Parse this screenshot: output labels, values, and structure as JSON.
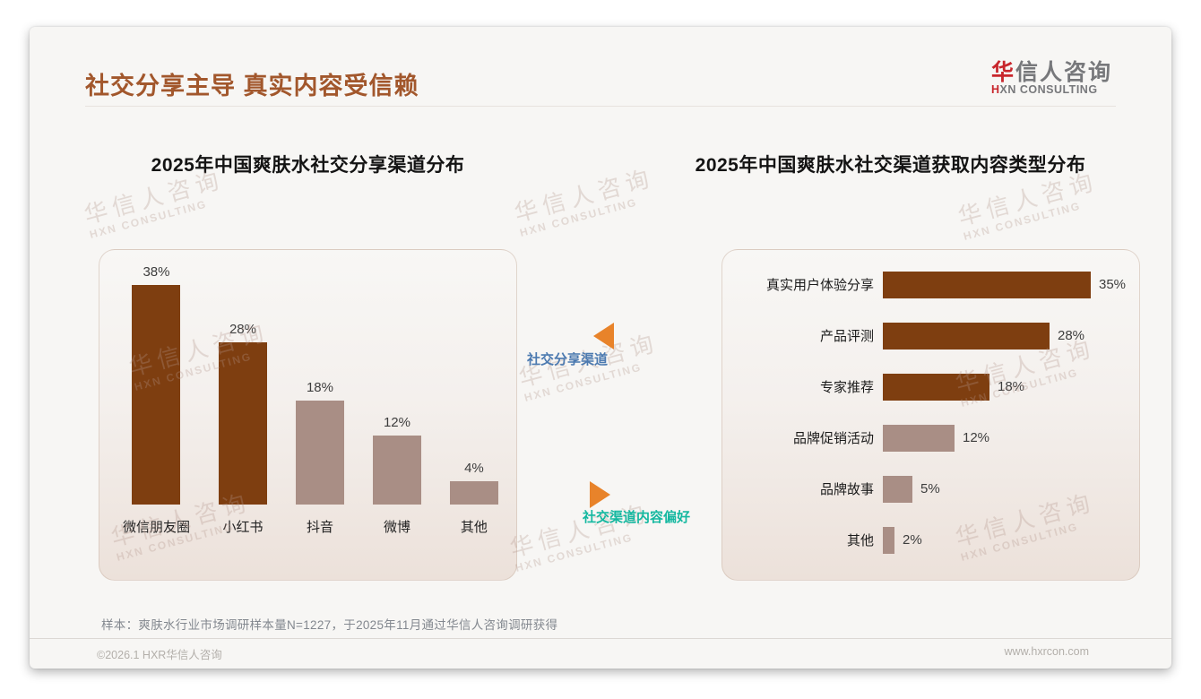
{
  "header": {
    "title": "社交分享主导 真实内容受信赖",
    "logo": {
      "cn_accent": "华",
      "cn_rest": "信人咨询",
      "en_accent": "H",
      "en_rest": "XN CONSULTING"
    }
  },
  "annotations": {
    "share_channel_label": "社交分享渠道",
    "content_pref_label": "社交渠道内容偏好"
  },
  "watermark": {
    "cn": "华信人咨询",
    "en": "HXN CONSULTING"
  },
  "footer": {
    "sample_note": "样本：爽肤水行业市场调研样本量N=1227，于2025年11月通过华信人咨询调研获得",
    "copyright": "©2026.1 HXR华信人咨询",
    "website": "www.hxrcon.com"
  },
  "colors": {
    "title_brown": "#A2572C",
    "bar_dark": "#7E3E10",
    "bar_muted": "#A98E85",
    "accent_orange": "#E8832A",
    "label_blue": "#4C7AB0",
    "label_teal": "#14B8A0",
    "logo_red": "#C8262C",
    "panel_bg_bottom": "#ECE1DA"
  },
  "chart_data": [
    {
      "type": "bar",
      "orientation": "vertical",
      "title": "2025年中国爽肤水社交分享渠道分布",
      "categories": [
        "微信朋友圈",
        "小红书",
        "抖音",
        "微博",
        "其他"
      ],
      "values": [
        38,
        28,
        18,
        12,
        4
      ],
      "value_labels": [
        "38%",
        "28%",
        "18%",
        "12%",
        "4%"
      ],
      "bar_colors": [
        "#7E3E10",
        "#7E3E10",
        "#A98E85",
        "#A98E85",
        "#A98E85"
      ],
      "ylim": [
        0,
        40
      ],
      "grid": false,
      "legend": false
    },
    {
      "type": "bar",
      "orientation": "horizontal",
      "title": "2025年中国爽肤水社交渠道获取内容类型分布",
      "categories": [
        "真实用户体验分享",
        "产品评测",
        "专家推荐",
        "品牌促销活动",
        "品牌故事",
        "其他"
      ],
      "values": [
        35,
        28,
        18,
        12,
        5,
        2
      ],
      "value_labels": [
        "35%",
        "28%",
        "18%",
        "12%",
        "5%",
        "2%"
      ],
      "bar_colors": [
        "#7E3E10",
        "#7E3E10",
        "#7E3E10",
        "#A98E85",
        "#A98E85",
        "#A98E85"
      ],
      "xlim": [
        0,
        40
      ],
      "grid": false,
      "legend": false
    }
  ]
}
